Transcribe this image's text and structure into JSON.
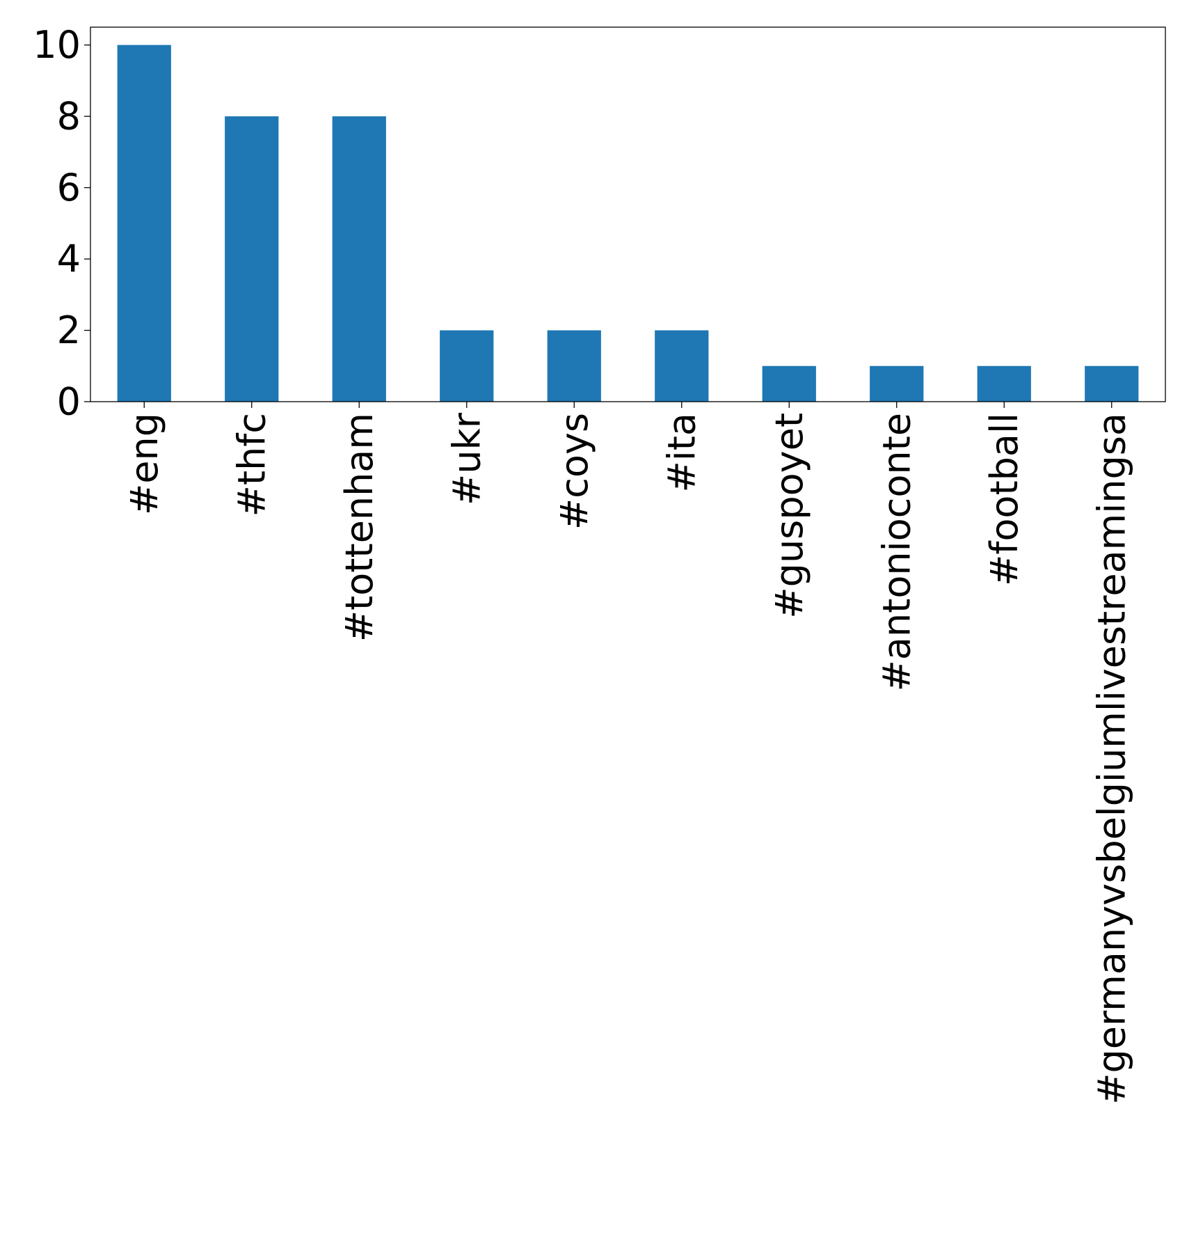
{
  "chart_data": {
    "type": "bar",
    "categories": [
      "#eng",
      "#thfc",
      "#tottenham",
      "#ukr",
      "#coys",
      "#ita",
      "#guspoyet",
      "#antonioconte",
      "#football",
      "#germanyvsbelgiumlivestreamingsa"
    ],
    "values": [
      10,
      8,
      8,
      2,
      2,
      2,
      1,
      1,
      1,
      1
    ],
    "ylim": [
      0,
      10.5
    ],
    "yticks": [
      0,
      2,
      4,
      6,
      8,
      10
    ],
    "grid": false,
    "bar_color": "#1f77b4"
  }
}
